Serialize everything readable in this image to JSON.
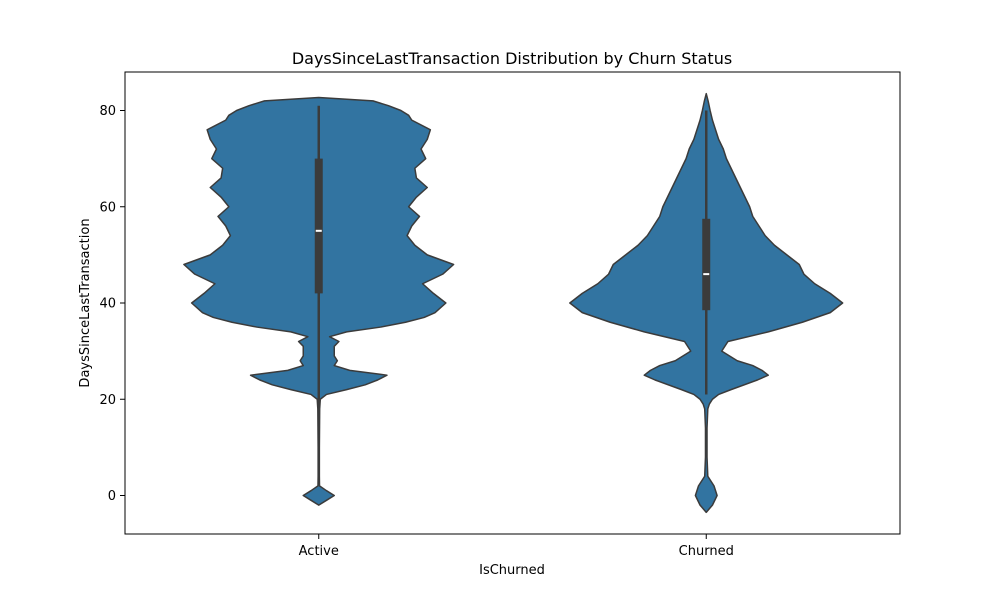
{
  "chart_data": {
    "type": "violin",
    "title": "DaysSinceLastTransaction Distribution by Churn Status",
    "xlabel": "IsChurned",
    "ylabel": "DaysSinceLastTransaction",
    "ylim": [
      -8,
      88
    ],
    "yticks": [
      0,
      20,
      40,
      60,
      80
    ],
    "categories": [
      "Active",
      "Churned"
    ],
    "fill_color": "#3274a1",
    "edge_color": "#3b3b3b",
    "grid": false,
    "series": [
      {
        "category": "Active",
        "box": {
          "whisker_low": 5,
          "q1": 42,
          "median": 55,
          "q3": 70,
          "whisker_high": 81
        },
        "density": [
          [
            -2,
            0.0
          ],
          [
            -1,
            0.05
          ],
          [
            0,
            0.1
          ],
          [
            1,
            0.05
          ],
          [
            2,
            0.005
          ],
          [
            4,
            0.004
          ],
          [
            10,
            0.004
          ],
          [
            18,
            0.006
          ],
          [
            20,
            0.01
          ],
          [
            21,
            0.05
          ],
          [
            22,
            0.18
          ],
          [
            23,
            0.3
          ],
          [
            24,
            0.38
          ],
          [
            25,
            0.44
          ],
          [
            26,
            0.2
          ],
          [
            27,
            0.1
          ],
          [
            28,
            0.12
          ],
          [
            29,
            0.1
          ],
          [
            30,
            0.1
          ],
          [
            31,
            0.1
          ],
          [
            32,
            0.13
          ],
          [
            33,
            0.07
          ],
          [
            34,
            0.18
          ],
          [
            35,
            0.4
          ],
          [
            36,
            0.56
          ],
          [
            37,
            0.68
          ],
          [
            38,
            0.75
          ],
          [
            40,
            0.82
          ],
          [
            42,
            0.74
          ],
          [
            44,
            0.67
          ],
          [
            46,
            0.8
          ],
          [
            48,
            0.87
          ],
          [
            50,
            0.7
          ],
          [
            52,
            0.62
          ],
          [
            54,
            0.57
          ],
          [
            56,
            0.6
          ],
          [
            58,
            0.65
          ],
          [
            60,
            0.58
          ],
          [
            62,
            0.63
          ],
          [
            64,
            0.7
          ],
          [
            66,
            0.63
          ],
          [
            68,
            0.62
          ],
          [
            70,
            0.69
          ],
          [
            72,
            0.66
          ],
          [
            74,
            0.7
          ],
          [
            76,
            0.72
          ],
          [
            78,
            0.6
          ],
          [
            79,
            0.58
          ],
          [
            80,
            0.53
          ],
          [
            81,
            0.45
          ],
          [
            82,
            0.35
          ],
          [
            82.7,
            0.0
          ]
        ]
      },
      {
        "category": "Churned",
        "box": {
          "whisker_low": 21,
          "q1": 38.5,
          "median": 46,
          "q3": 57.5,
          "whisker_high": 80
        },
        "density": [
          [
            -3.5,
            0.0
          ],
          [
            -2,
            0.04
          ],
          [
            0,
            0.07
          ],
          [
            2,
            0.05
          ],
          [
            4,
            0.01
          ],
          [
            8,
            0.005
          ],
          [
            14,
            0.005
          ],
          [
            18,
            0.01
          ],
          [
            19,
            0.02
          ],
          [
            20,
            0.04
          ],
          [
            21,
            0.08
          ],
          [
            22,
            0.16
          ],
          [
            24,
            0.33
          ],
          [
            25,
            0.4
          ],
          [
            26,
            0.36
          ],
          [
            27,
            0.3
          ],
          [
            28,
            0.2
          ],
          [
            30,
            0.1
          ],
          [
            32,
            0.14
          ],
          [
            34,
            0.4
          ],
          [
            36,
            0.62
          ],
          [
            38,
            0.8
          ],
          [
            40,
            0.88
          ],
          [
            42,
            0.8
          ],
          [
            44,
            0.7
          ],
          [
            46,
            0.63
          ],
          [
            48,
            0.6
          ],
          [
            50,
            0.52
          ],
          [
            52,
            0.44
          ],
          [
            54,
            0.38
          ],
          [
            56,
            0.34
          ],
          [
            58,
            0.3
          ],
          [
            60,
            0.28
          ],
          [
            62,
            0.25
          ],
          [
            64,
            0.22
          ],
          [
            66,
            0.19
          ],
          [
            68,
            0.16
          ],
          [
            70,
            0.13
          ],
          [
            72,
            0.11
          ],
          [
            74,
            0.08
          ],
          [
            76,
            0.06
          ],
          [
            78,
            0.04
          ],
          [
            80,
            0.025
          ],
          [
            82,
            0.012
          ],
          [
            83.5,
            0.0
          ]
        ]
      }
    ]
  }
}
